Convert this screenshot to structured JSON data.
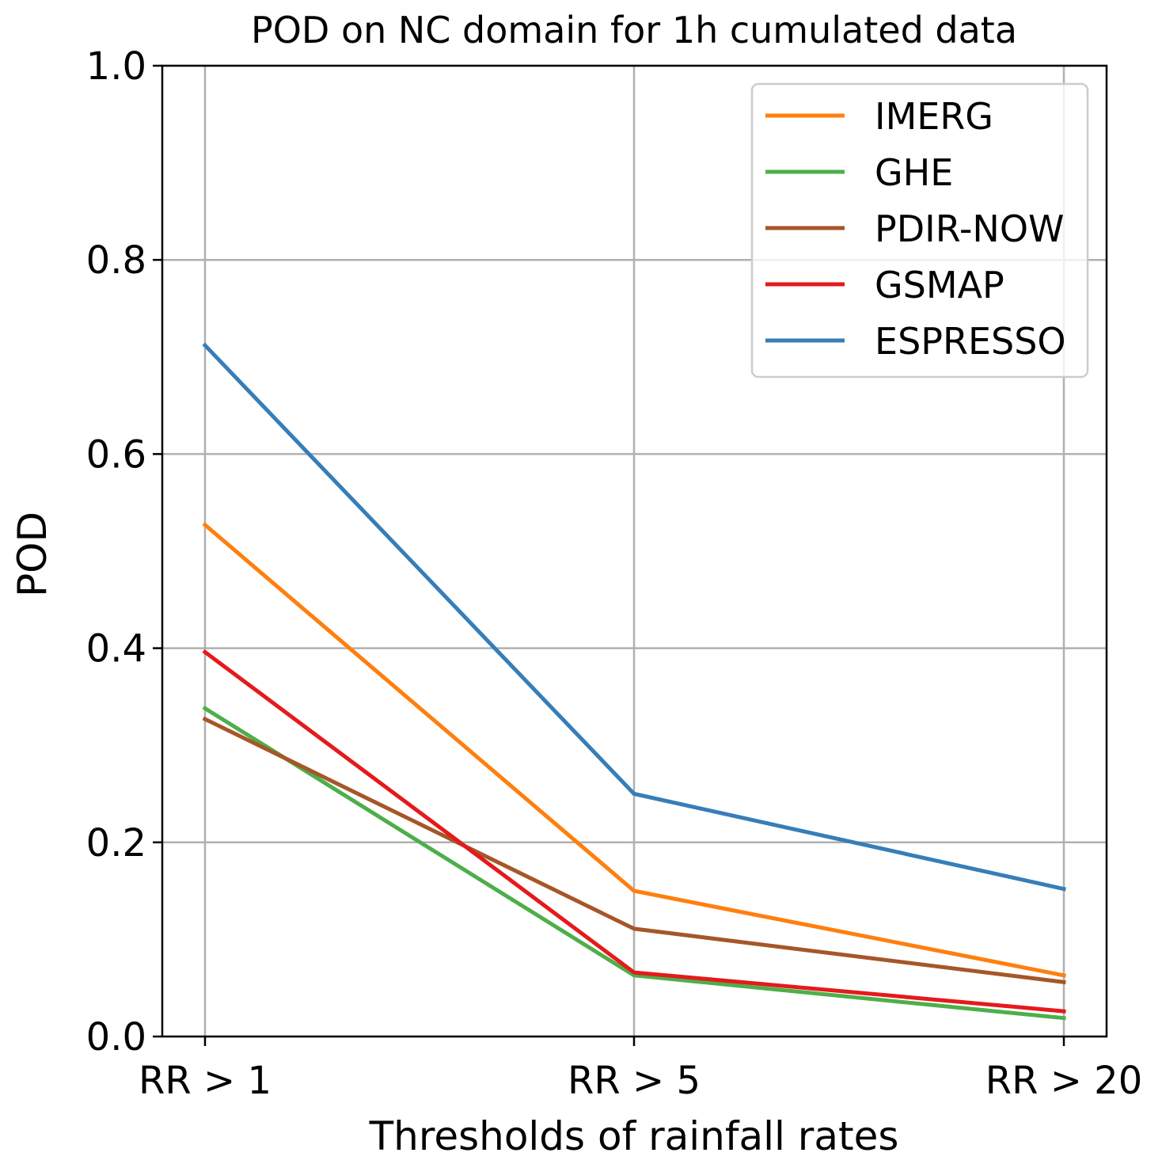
{
  "chart_data": {
    "type": "line",
    "title": "POD on NC domain for 1h cumulated data",
    "xlabel": "Thresholds of rainfall rates",
    "ylabel": "POD",
    "categories": [
      "RR > 1",
      "RR > 5",
      "RR > 20"
    ],
    "ylim": [
      0,
      1.0
    ],
    "yticks": [
      "0.0",
      "0.2",
      "0.4",
      "0.6",
      "0.8",
      "1.0"
    ],
    "ytick_values": [
      0,
      0.2,
      0.4,
      0.6,
      0.8,
      1.0
    ],
    "grid": true,
    "legend_position": "top-right",
    "series": [
      {
        "name": "IMERG",
        "color": "#ff7f0e",
        "values": [
          0.527,
          0.15,
          0.063
        ]
      },
      {
        "name": "GHE",
        "color": "#4daf4a",
        "values": [
          0.338,
          0.063,
          0.019
        ]
      },
      {
        "name": "PDIR-NOW",
        "color": "#a65628",
        "values": [
          0.327,
          0.111,
          0.056
        ]
      },
      {
        "name": "GSMAP",
        "color": "#e41a1c",
        "values": [
          0.396,
          0.066,
          0.026
        ]
      },
      {
        "name": "ESPRESSO",
        "color": "#377eb8",
        "values": [
          0.712,
          0.25,
          0.152
        ]
      }
    ]
  }
}
